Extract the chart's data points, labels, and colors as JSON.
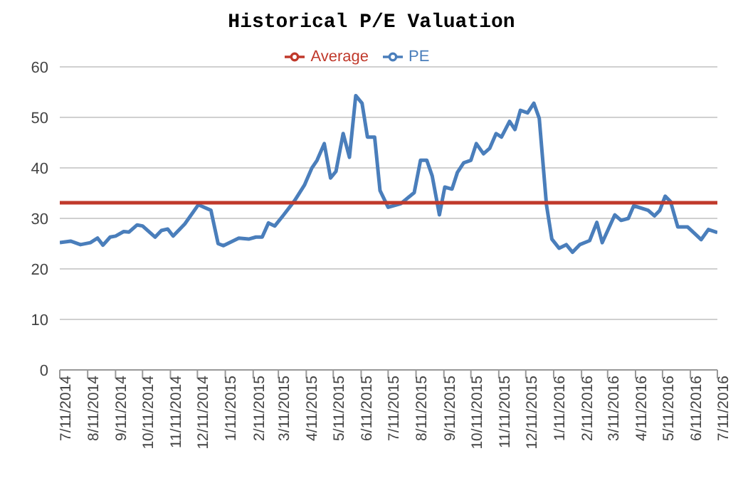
{
  "chart_data": {
    "type": "line",
    "title": "Historical P/E Valuation",
    "xlim": [
      "2014-07-11",
      "2016-07-11"
    ],
    "xticks": [
      {
        "value": "2014-07-11",
        "label": "7/11/2014"
      },
      {
        "value": "2014-08-11",
        "label": "8/11/2014"
      },
      {
        "value": "2014-09-11",
        "label": "9/11/2014"
      },
      {
        "value": "2014-10-11",
        "label": "10/11/2014"
      },
      {
        "value": "2014-11-11",
        "label": "11/11/2014"
      },
      {
        "value": "2014-12-11",
        "label": "12/11/2014"
      },
      {
        "value": "2015-01-11",
        "label": "1/11/2015"
      },
      {
        "value": "2015-02-11",
        "label": "2/11/2015"
      },
      {
        "value": "2015-03-11",
        "label": "3/11/2015"
      },
      {
        "value": "2015-04-11",
        "label": "4/11/2015"
      },
      {
        "value": "2015-05-11",
        "label": "5/11/2015"
      },
      {
        "value": "2015-06-11",
        "label": "6/11/2015"
      },
      {
        "value": "2015-07-11",
        "label": "7/11/2015"
      },
      {
        "value": "2015-08-11",
        "label": "8/11/2015"
      },
      {
        "value": "2015-09-11",
        "label": "9/11/2015"
      },
      {
        "value": "2015-10-11",
        "label": "10/11/2015"
      },
      {
        "value": "2015-11-11",
        "label": "11/11/2015"
      },
      {
        "value": "2015-12-11",
        "label": "12/11/2015"
      },
      {
        "value": "2016-01-11",
        "label": "1/11/2016"
      },
      {
        "value": "2016-02-11",
        "label": "2/11/2016"
      },
      {
        "value": "2016-03-11",
        "label": "3/11/2016"
      },
      {
        "value": "2016-04-11",
        "label": "4/11/2016"
      },
      {
        "value": "2016-05-11",
        "label": "5/11/2016"
      },
      {
        "value": "2016-06-11",
        "label": "6/11/2016"
      },
      {
        "value": "2016-07-11",
        "label": "7/11/2016"
      }
    ],
    "ylim": [
      0,
      60
    ],
    "yticks": [
      0,
      10,
      20,
      30,
      40,
      50,
      60
    ],
    "grid": "y",
    "legend": "top",
    "marker": "none",
    "line_style": "solid",
    "series": [
      {
        "name": "PE",
        "color": "#4a7ebb",
        "x": [
          "2014-07-11",
          "2014-07-23",
          "2014-08-03",
          "2014-08-14",
          "2014-08-22",
          "2014-08-28",
          "2014-09-05",
          "2014-09-11",
          "2014-09-20",
          "2014-09-26",
          "2014-10-05",
          "2014-10-11",
          "2014-10-25",
          "2014-11-01",
          "2014-11-08",
          "2014-11-14",
          "2014-11-27",
          "2014-12-12",
          "2014-12-26",
          "2015-01-03",
          "2015-01-09",
          "2015-01-26",
          "2015-02-06",
          "2015-02-14",
          "2015-02-21",
          "2015-02-28",
          "2015-03-07",
          "2015-03-16",
          "2015-03-29",
          "2015-04-09",
          "2015-04-17",
          "2015-04-23",
          "2015-05-01",
          "2015-05-08",
          "2015-05-14",
          "2015-05-22",
          "2015-05-29",
          "2015-06-05",
          "2015-06-12",
          "2015-06-18",
          "2015-06-26",
          "2015-07-02",
          "2015-07-11",
          "2015-07-25",
          "2015-08-09",
          "2015-08-16",
          "2015-08-23",
          "2015-08-29",
          "2015-09-06",
          "2015-09-12",
          "2015-09-20",
          "2015-09-26",
          "2015-10-03",
          "2015-10-11",
          "2015-10-17",
          "2015-10-25",
          "2015-11-01",
          "2015-11-08",
          "2015-11-14",
          "2015-11-23",
          "2015-11-29",
          "2015-12-05",
          "2015-12-13",
          "2015-12-20",
          "2015-12-26",
          "2016-01-03",
          "2016-01-09",
          "2016-01-17",
          "2016-01-25",
          "2016-02-01",
          "2016-02-09",
          "2016-02-20",
          "2016-02-28",
          "2016-03-05",
          "2016-03-19",
          "2016-03-26",
          "2016-04-03",
          "2016-04-09",
          "2016-04-25",
          "2016-05-02",
          "2016-05-08",
          "2016-05-14",
          "2016-05-20",
          "2016-05-28",
          "2016-06-08",
          "2016-06-23",
          "2016-07-01",
          "2016-07-11"
        ],
        "values": [
          25.2,
          25.5,
          24.8,
          25.2,
          26.1,
          24.7,
          26.3,
          26.5,
          27.4,
          27.3,
          28.7,
          28.5,
          26.3,
          27.6,
          27.9,
          26.5,
          28.9,
          32.7,
          31.6,
          25.0,
          24.6,
          26.1,
          25.9,
          26.3,
          26.3,
          29.1,
          28.5,
          30.5,
          33.5,
          36.6,
          39.9,
          41.5,
          44.8,
          38.0,
          39.3,
          46.8,
          42.1,
          54.3,
          52.8,
          46.1,
          46.1,
          35.5,
          32.2,
          32.9,
          35.1,
          41.5,
          41.5,
          38.4,
          30.7,
          36.2,
          35.8,
          39.1,
          41.0,
          41.5,
          44.8,
          42.8,
          43.9,
          46.8,
          46.1,
          49.2,
          47.6,
          51.4,
          50.9,
          52.8,
          49.8,
          32.7,
          25.9,
          24.1,
          24.8,
          23.3,
          24.8,
          25.6,
          29.2,
          25.2,
          30.7,
          29.6,
          30.0,
          32.5,
          31.6,
          30.5,
          31.6,
          34.4,
          33.3,
          28.3,
          28.3,
          25.8,
          27.8,
          27.2
        ]
      },
      {
        "name": "Average",
        "color": "#c0392b",
        "x": [
          "2014-07-11",
          "2016-07-11"
        ],
        "values": [
          33.1,
          33.1
        ]
      }
    ]
  }
}
